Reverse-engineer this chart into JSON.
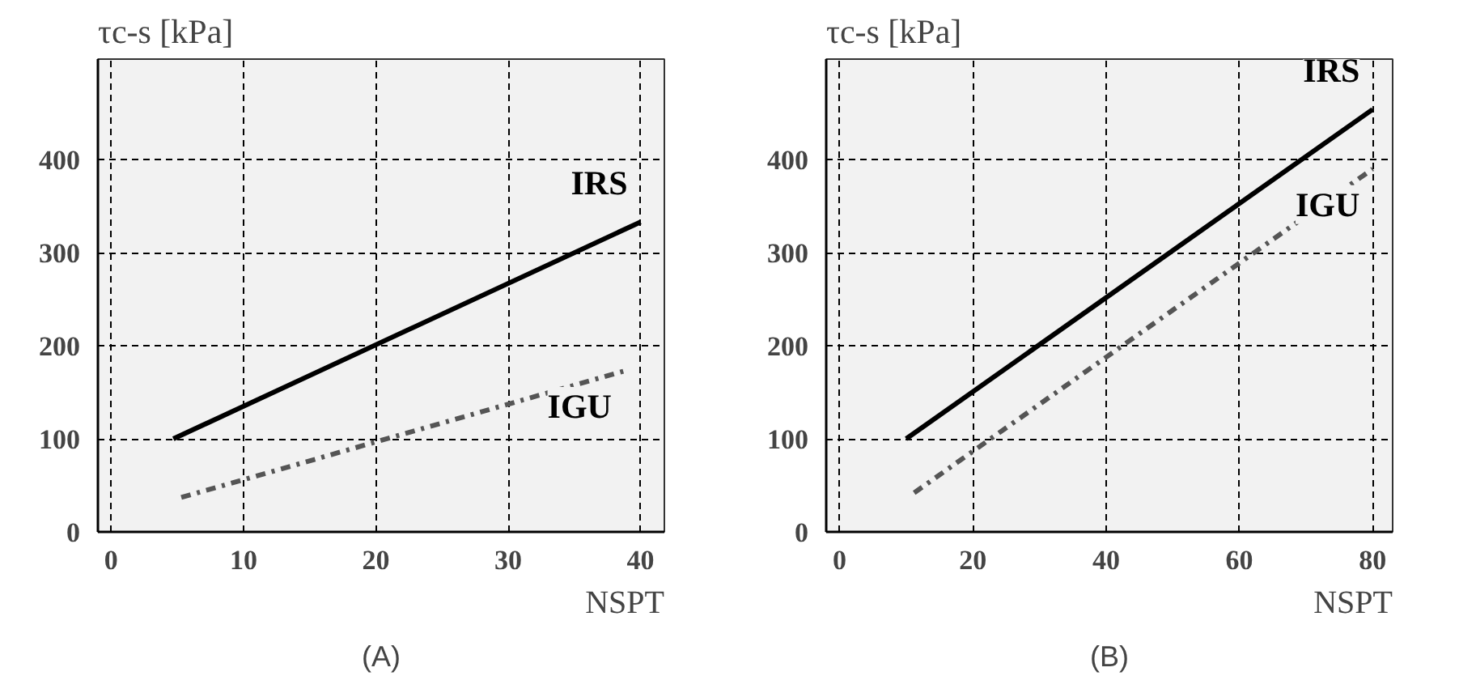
{
  "chart_data": [
    {
      "type": "line",
      "title": "(A)",
      "xlabel": "NSPT",
      "ylabel": "τc-s [kPa]",
      "xlim": [
        -1,
        41.8
      ],
      "ylim": [
        0,
        508
      ],
      "xticks": [
        0,
        10,
        20,
        30,
        40
      ],
      "yticks": [
        0,
        100,
        200,
        300,
        400
      ],
      "grid": true,
      "marker": "none",
      "series": [
        {
          "name": "IRS",
          "color": "#000000",
          "line_style": "solid",
          "x": [
            4.7,
            40
          ],
          "values": [
            100,
            333
          ]
        },
        {
          "name": "IGU",
          "color": "#555555",
          "line_style": "dashdot",
          "x": [
            5.3,
            38.8
          ],
          "values": [
            37,
            173
          ]
        }
      ]
    },
    {
      "type": "line",
      "title": "(B)",
      "xlabel": "NSPT",
      "ylabel": "τc-s [kPa]",
      "xlim": [
        -2,
        83
      ],
      "ylim": [
        0,
        508
      ],
      "xticks": [
        0,
        20,
        40,
        60,
        80
      ],
      "yticks": [
        0,
        100,
        200,
        300,
        400
      ],
      "grid": true,
      "marker": "none",
      "series": [
        {
          "name": "IRS",
          "color": "#000000",
          "line_style": "solid",
          "x": [
            10,
            80
          ],
          "values": [
            100,
            454
          ]
        },
        {
          "name": "IGU",
          "color": "#555555",
          "line_style": "dashdot",
          "x": [
            11.2,
            80
          ],
          "values": [
            42,
            390
          ]
        }
      ]
    }
  ]
}
